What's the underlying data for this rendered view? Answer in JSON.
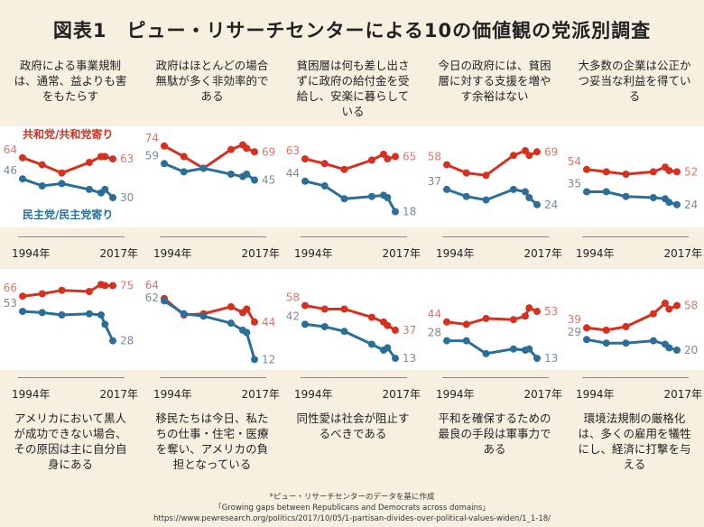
{
  "title": "図表1　ピュー・リサーチセンターによる10の価値観の党派別調査",
  "chart_data": {
    "type": "line",
    "x": [
      1994,
      1999,
      2004,
      2011,
      2014,
      2015,
      2017
    ],
    "xtick_labels": [
      "1994年",
      "2017年"
    ],
    "legend": [
      "共和党/共和党寄り",
      "民主党/民主党寄り"
    ],
    "colors": {
      "republican": "#d7301f",
      "democrat": "#2b6f99"
    },
    "panels": [
      {
        "label": "政府による事業規制は、通常、益よりも害をもたらす",
        "series": [
          {
            "name": "共和党/共和党寄り",
            "values": [
              64,
              58,
              51,
              60,
              65,
              65,
              63
            ]
          },
          {
            "name": "民主党/民主党寄り",
            "values": [
              46,
              40,
              42,
              37,
              34,
              37,
              30
            ]
          }
        ]
      },
      {
        "label": "政府はほとんどの場合無駄が多く非効率的である",
        "series": [
          {
            "name": "共和党/共和党寄り",
            "values": [
              74,
              65,
              55,
              71,
              75,
              72,
              69
            ]
          },
          {
            "name": "民主党/民主党寄り",
            "values": [
              59,
              52,
              55,
              50,
              48,
              50,
              45
            ]
          }
        ]
      },
      {
        "label": "貧困層は何も差し出さずに政府の給付金を受給し、安楽に暮らしている",
        "series": [
          {
            "name": "共和党/共和党寄り",
            "values": [
              63,
              59,
              54,
              62,
              67,
              63,
              65
            ]
          },
          {
            "name": "民主党/民主党寄り",
            "values": [
              44,
              40,
              29,
              31,
              32,
              30,
              18
            ]
          }
        ]
      },
      {
        "label": "今日の政府には、貧困層に対する支援を増やす余裕はない",
        "series": [
          {
            "name": "共和党/共和党寄り",
            "values": [
              58,
              51,
              49,
              66,
              70,
              66,
              69
            ]
          },
          {
            "name": "民主党/民主党寄り",
            "values": [
              37,
              31,
              28,
              37,
              35,
              30,
              24
            ]
          }
        ]
      },
      {
        "label": "大多数の企業は公正かつ妥当な利益を得ている",
        "series": [
          {
            "name": "共和党/共和党寄り",
            "values": [
              54,
              52,
              50,
              52,
              56,
              53,
              52
            ]
          },
          {
            "name": "民主党/民主党寄り",
            "values": [
              35,
              35,
              31,
              30,
              29,
              26,
              24
            ]
          }
        ]
      },
      {
        "label": "アメリカにおいて黒人が成功できない場合、その原因は主に自分自身にある",
        "series": [
          {
            "name": "共和党/共和党寄り",
            "values": [
              66,
              68,
              71,
              70,
              76,
              75,
              75
            ]
          },
          {
            "name": "民主党/民主党寄り",
            "values": [
              53,
              52,
              50,
              51,
              50,
              42,
              28
            ]
          }
        ]
      },
      {
        "label": "移民たちは今日、私たちの仕事・住宅・医療を奪い、アメリカの負担となっている",
        "series": [
          {
            "name": "共和党/共和党寄り",
            "values": [
              64,
              50,
              51,
              57,
              52,
              55,
              44
            ]
          },
          {
            "name": "民主党/民主党寄り",
            "values": [
              62,
              51,
              49,
              43,
              37,
              35,
              12
            ]
          }
        ]
      },
      {
        "label": "同性愛は社会が阻止するべきである",
        "series": [
          {
            "name": "共和党/共和党寄り",
            "values": [
              58,
              55,
              55,
              48,
              44,
              41,
              37
            ]
          },
          {
            "name": "民主党/民主党寄り",
            "values": [
              42,
              40,
              36,
              25,
              20,
              22,
              13
            ]
          }
        ]
      },
      {
        "label": "平和を確保するための最良の手段は軍事力である",
        "series": [
          {
            "name": "共和党/共和党寄り",
            "values": [
              44,
              42,
              47,
              46,
              49,
              56,
              53
            ]
          },
          {
            "name": "民主党/民主党寄り",
            "values": [
              28,
              28,
              17,
              21,
              20,
              21,
              13
            ]
          }
        ]
      },
      {
        "label": "環境法規制の厳格化は、多くの雇用を犠牲にし、経済に打撃を与える",
        "series": [
          {
            "name": "共和党/共和党寄り",
            "values": [
              39,
              37,
              40,
              51,
              60,
              55,
              58
            ]
          },
          {
            "name": "民主党/民主党寄り",
            "values": [
              29,
              26,
              26,
              28,
              25,
              22,
              20
            ]
          }
        ]
      }
    ]
  },
  "footer": {
    "note": "*ピュー・リサーチセンターのデータを基に作成",
    "source": "「Growing gaps between Republicans and Democrats across domains」",
    "url": "https://www.pewresearch.org/politics/2017/10/05/1-partisan-divides-over-political-values-widen/1_1-18/"
  }
}
